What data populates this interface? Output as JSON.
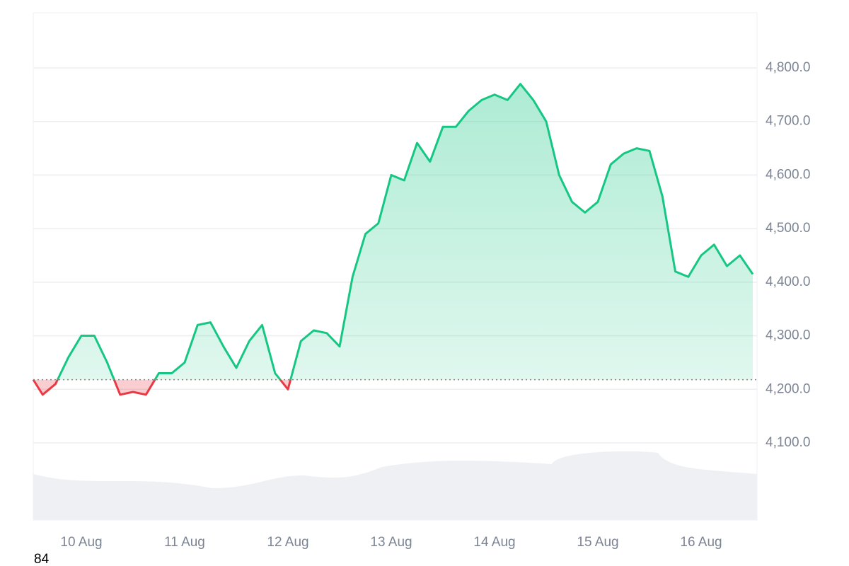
{
  "chart_data": {
    "type": "line",
    "categories": [
      null,
      null,
      null,
      null,
      "10 Aug",
      null,
      null,
      null,
      null,
      null,
      null,
      null,
      "11 Aug",
      null,
      null,
      null,
      null,
      null,
      null,
      null,
      "12 Aug",
      null,
      null,
      null,
      null,
      null,
      null,
      null,
      "13 Aug",
      null,
      null,
      null,
      null,
      null,
      null,
      null,
      "14 Aug",
      null,
      null,
      null,
      null,
      null,
      null,
      null,
      "15 Aug",
      null,
      null,
      null,
      null,
      null,
      null,
      null,
      "16 Aug",
      null,
      null,
      null,
      null
    ],
    "values": [
      4218,
      4190,
      4210,
      4260,
      4300,
      4300,
      4250,
      4190,
      4195,
      4190,
      4230,
      4230,
      4250,
      4320,
      4325,
      4280,
      4240,
      4290,
      4320,
      4230,
      4200,
      4290,
      4310,
      4305,
      4280,
      4410,
      4490,
      4510,
      4600,
      4590,
      4660,
      4625,
      4690,
      4690,
      4720,
      4740,
      4750,
      4740,
      4770,
      4740,
      4700,
      4600,
      4550,
      4530,
      4550,
      4620,
      4640,
      4650,
      4645,
      4560,
      4420,
      4410,
      4450,
      4470,
      4430,
      4450,
      4415
    ],
    "baseline": 4218,
    "color_up": "#16c784",
    "color_down": "#ea3943",
    "ylim": [
      3956,
      4903
    ],
    "yticks": [
      {
        "value": 4100,
        "label": "4,100.0"
      },
      {
        "value": 4200,
        "label": "4,200.0"
      },
      {
        "value": 4300,
        "label": "4,300.0"
      },
      {
        "value": 4400,
        "label": "4,400.0"
      },
      {
        "value": 4500,
        "label": "4,500.0"
      },
      {
        "value": 4600,
        "label": "4,600.0"
      },
      {
        "value": 4700,
        "label": "4,700.0"
      },
      {
        "value": 4800,
        "label": "4,800.0"
      }
    ],
    "grid": true,
    "footer_text": "84"
  }
}
